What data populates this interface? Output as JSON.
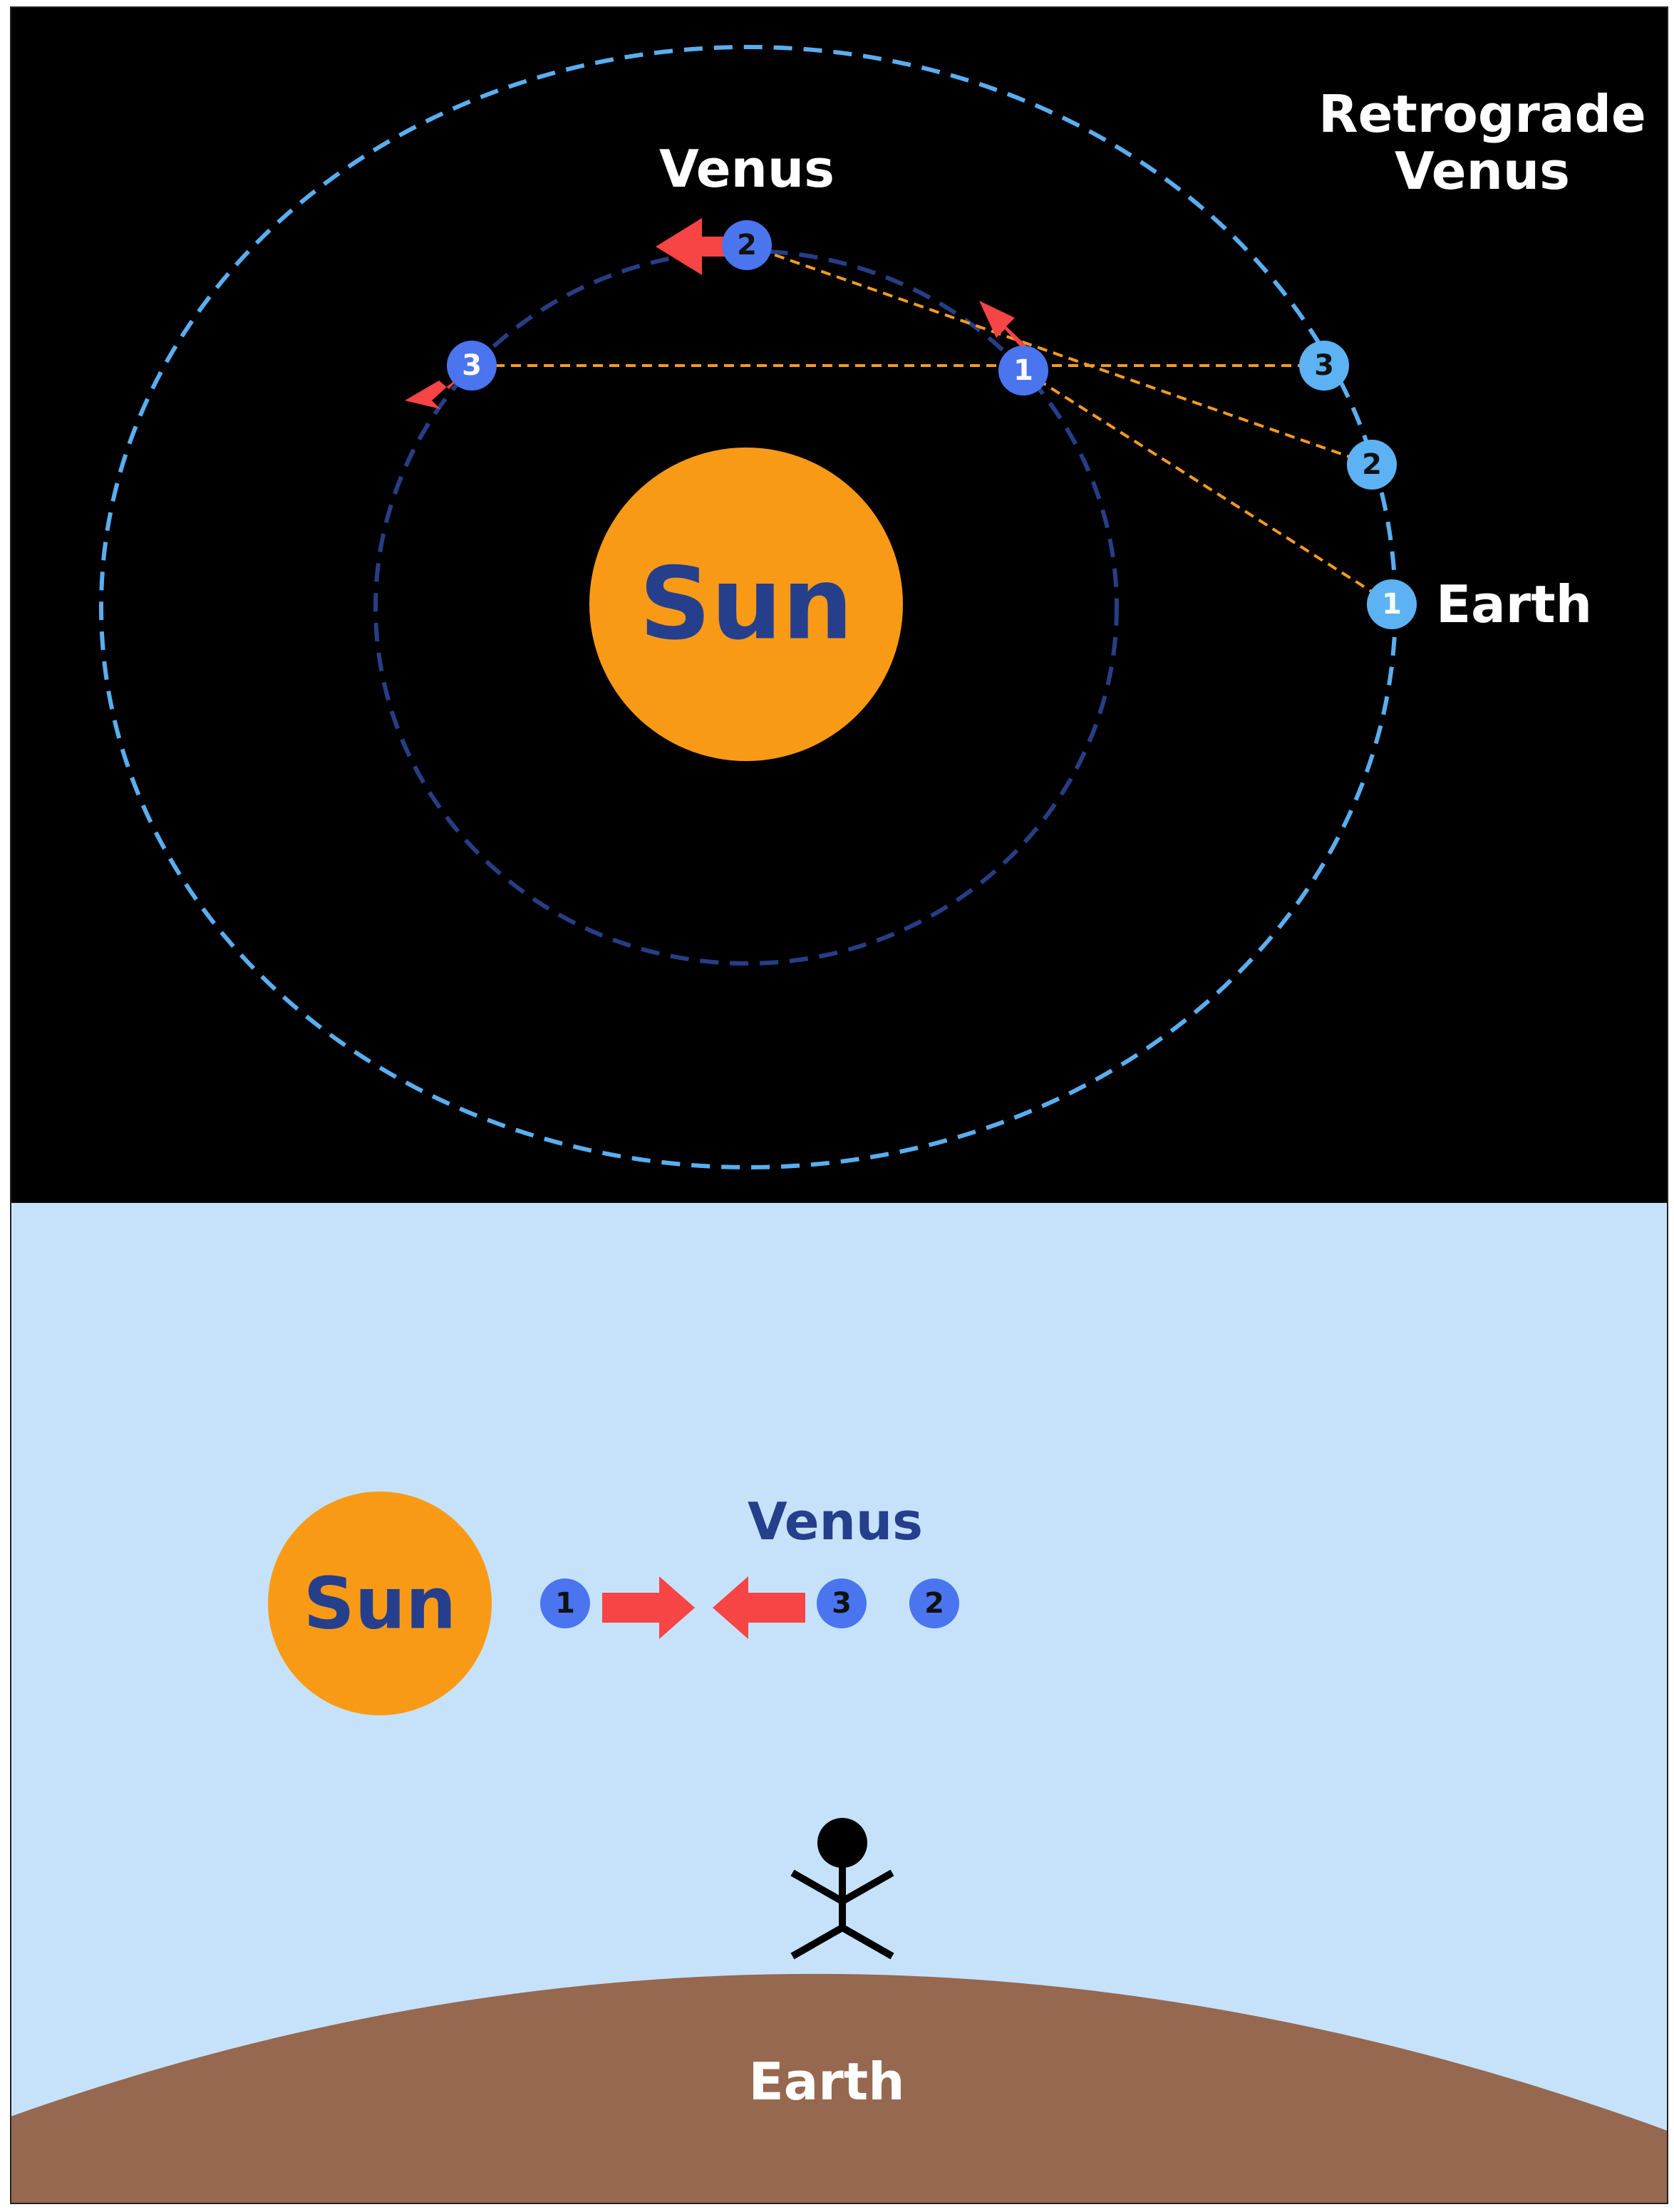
{
  "title": {
    "line1": "Retrograde",
    "line2": "Venus"
  },
  "top_panel": {
    "sun_label": "Sun",
    "venus_label": "Venus",
    "earth_label": "Earth",
    "venus_positions": [
      "1",
      "2",
      "3"
    ],
    "earth_positions": [
      "1",
      "2",
      "3"
    ]
  },
  "bottom_panel": {
    "sun_label": "Sun",
    "venus_label": "Venus",
    "earth_label": "Earth",
    "sky_positions": [
      "1",
      "3",
      "2"
    ]
  },
  "colors": {
    "space": "#000000",
    "sky": "#c6e2fb",
    "ground": "#966850",
    "sun": "#f99a17",
    "sun_text": "#253f8c",
    "venus_marker": "#4b74ef",
    "earth_marker": "#5db2f4",
    "earth_orbit": "#5aaef0",
    "venus_orbit": "#263e86",
    "sight_line": "#f59a23",
    "motion_arrow": "#f74444",
    "white_text": "#ffffff"
  }
}
